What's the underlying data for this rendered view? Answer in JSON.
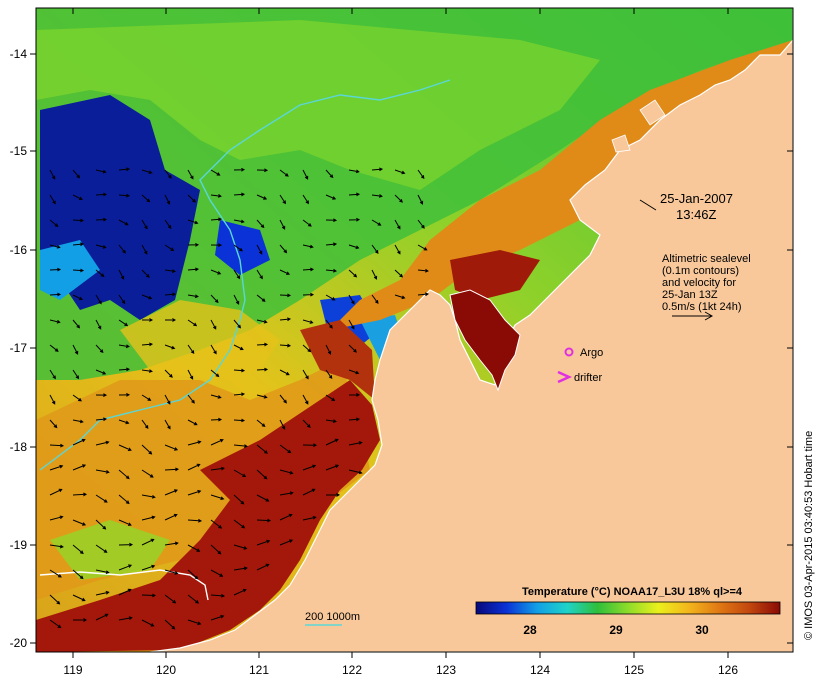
{
  "map": {
    "title_timestamp": {
      "date": "25-Jan-2007",
      "time": "13:46Z"
    },
    "altimetry_note": [
      "Altimetric sealevel",
      "(0.1m contours)",
      "and velocity for",
      "25-Jan 13Z",
      "0.5m/s (1kt 24h)"
    ],
    "legend_points": {
      "argo": "Argo",
      "drifter": "drifter"
    },
    "depth_legend": "200 1000m",
    "colorbar": {
      "title": "Temperature (°C) NOAA17_L3U 18% ql>=4",
      "ticks": [
        "28",
        "29",
        "30"
      ],
      "stops": [
        "#08087a",
        "#0b32d6",
        "#129fe6",
        "#1fd3c8",
        "#2fbf3b",
        "#8edc2a",
        "#eaf01c",
        "#f3b61c",
        "#e07814",
        "#c2470f",
        "#8a0a05"
      ]
    },
    "x_ticks": [
      "119",
      "120",
      "121",
      "122",
      "123",
      "124",
      "125",
      "126"
    ],
    "y_ticks": [
      "-14",
      "-15",
      "-16",
      "-17",
      "-18",
      "-19",
      "-20"
    ],
    "credit": "© IMOS 03-Apr-2015 03:40:53 Hobart time",
    "colors": {
      "land": "#f8c89b",
      "argo": "#e030e0",
      "contour": "#5ad7d7",
      "coast": "#ffffff"
    }
  }
}
